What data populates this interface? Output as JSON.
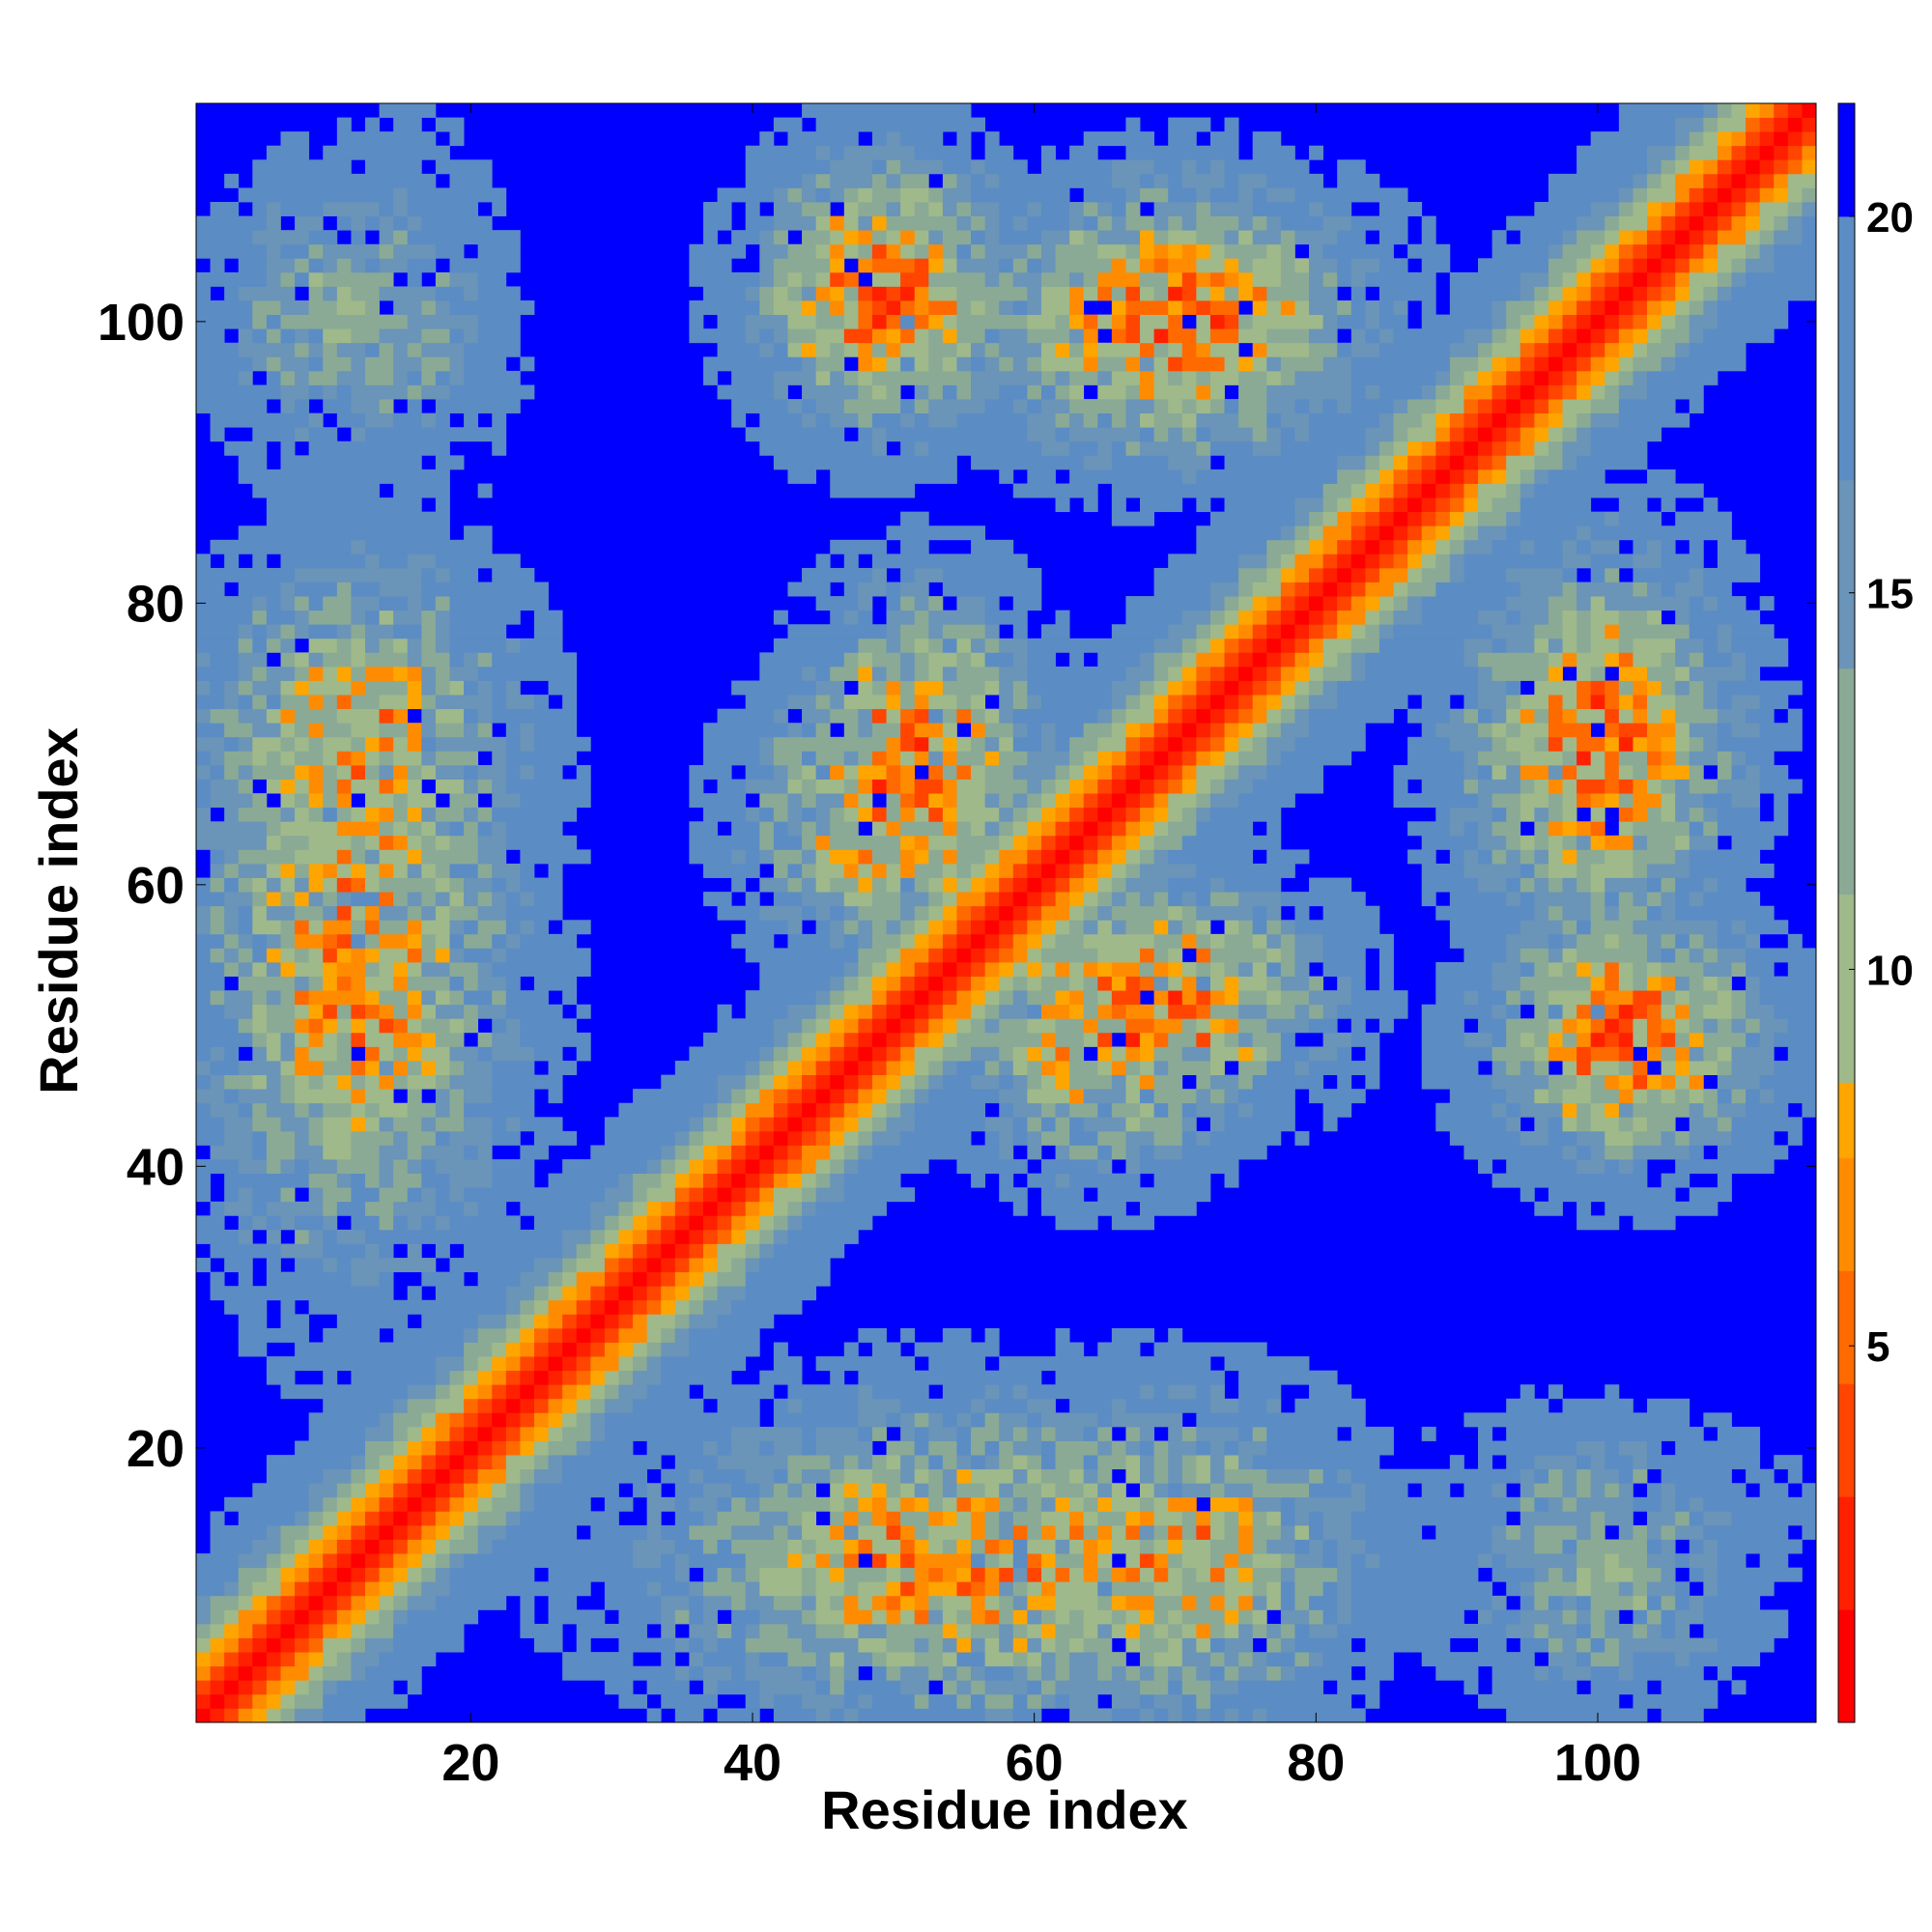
{
  "chart_data": {
    "type": "heatmap",
    "title": "",
    "xlabel": "Residue index",
    "ylabel": "Residue index",
    "n_residues": 115,
    "xlim": [
      1,
      115
    ],
    "ylim": [
      1,
      115
    ],
    "x_ticks": [
      20,
      40,
      60,
      80,
      100
    ],
    "y_ticks": [
      20,
      40,
      60,
      80,
      100
    ],
    "colorbar": {
      "range": [
        0,
        21.5
      ],
      "ticks": [
        5,
        10,
        15,
        20
      ],
      "placement": "right",
      "colors": [
        {
          "max": 1.5,
          "color": "#ff0000"
        },
        {
          "max": 3.0,
          "color": "#ff2000"
        },
        {
          "max": 4.5,
          "color": "#ff4500"
        },
        {
          "max": 6.0,
          "color": "#ff6a00"
        },
        {
          "max": 7.5,
          "color": "#ff8c00"
        },
        {
          "max": 8.5,
          "color": "#ffa500"
        },
        {
          "max": 11.0,
          "color": "#9fb98a"
        },
        {
          "max": 14.0,
          "color": "#8aaa96"
        },
        {
          "max": 16.5,
          "color": "#6a94b8"
        },
        {
          "max": 20.0,
          "color": "#5b8cc4"
        },
        {
          "max": 99,
          "color": "#0000ff"
        }
      ]
    },
    "diagonal_band": {
      "width_fwhm": 6
    },
    "contact_regions": [
      {
        "x": 10,
        "y": 100,
        "sx": 6,
        "sy": 7,
        "min": 12
      },
      {
        "x": 50,
        "y": 102,
        "sx": 6,
        "sy": 7,
        "min": 6
      },
      {
        "x": 70,
        "y": 100,
        "sx": 8,
        "sy": 6,
        "min": 6
      },
      {
        "x": 12,
        "y": 55,
        "sx": 8,
        "sy": 16,
        "min": 7
      },
      {
        "x": 52,
        "y": 70,
        "sx": 6,
        "sy": 8,
        "min": 6
      },
      {
        "x": 65,
        "y": 50,
        "sx": 7,
        "sy": 7,
        "min": 6
      },
      {
        "x": 100,
        "y": 70,
        "sx": 7,
        "sy": 10,
        "min": 6
      },
      {
        "x": 102,
        "y": 48,
        "sx": 7,
        "sy": 6,
        "min": 6
      },
      {
        "x": 50,
        "y": 12,
        "sx": 8,
        "sy": 6,
        "min": 7
      },
      {
        "x": 70,
        "y": 12,
        "sx": 9,
        "sy": 8,
        "min": 7
      },
      {
        "x": 100,
        "y": 15,
        "sx": 8,
        "sy": 5,
        "min": 13
      }
    ]
  }
}
